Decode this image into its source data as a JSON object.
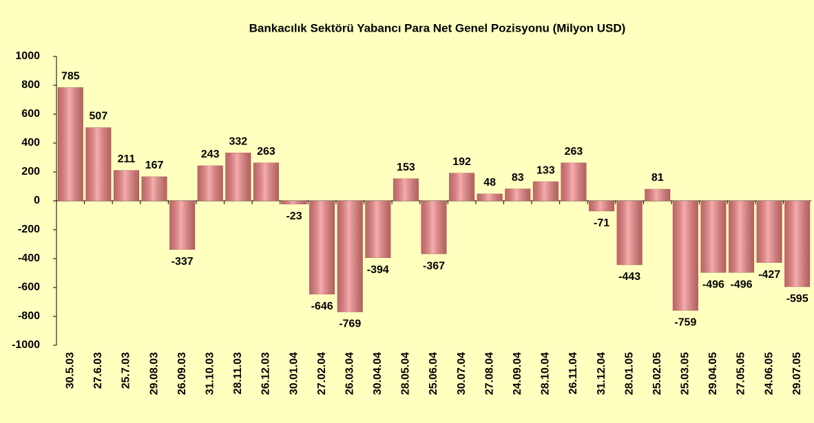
{
  "chart_data": {
    "type": "bar",
    "title": "Bankacılık Sektörü Yabancı Para Net Genel Pozisyonu (Milyon USD)",
    "categories": [
      "30.5.03",
      "27.6.03",
      "25.7.03",
      "29.08.03",
      "26.09.03",
      "31.10.03",
      "28.11.03",
      "26.12.03",
      "30.01.04",
      "27.02.04",
      "26.03.04",
      "30.04.04",
      "28.05.04",
      "25.06.04",
      "30.07.04",
      "27.08.04",
      "24.09.04",
      "28.10.04",
      "26.11.04",
      "31.12.04",
      "28.01.05",
      "25.02.05",
      "25.03.05",
      "29.04.05",
      "27.05.05",
      "24.06.05",
      "29.07.05"
    ],
    "values": [
      785,
      507,
      211,
      167,
      -337,
      243,
      332,
      263,
      -23,
      -646,
      -769,
      -394,
      153,
      -367,
      192,
      48,
      83,
      133,
      263,
      -71,
      -443,
      81,
      -759,
      -496,
      -496,
      -427,
      -595
    ],
    "color": "#f08080",
    "ylim": [
      -1000,
      1000
    ],
    "yticks": [
      -1000,
      -800,
      -600,
      -400,
      -200,
      0,
      200,
      400,
      600,
      800,
      1000
    ],
    "grid": false
  }
}
